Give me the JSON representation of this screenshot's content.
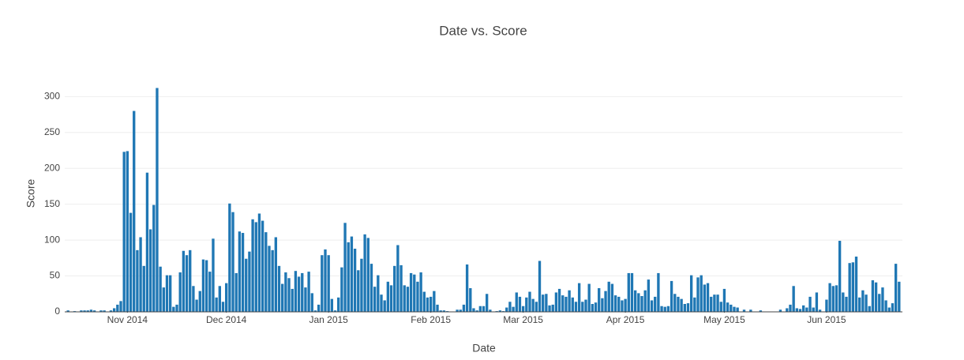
{
  "chart_data": {
    "type": "bar",
    "title": "Date vs. Score",
    "x_label": "Date",
    "y_label": "Score",
    "color": "#1f77b4",
    "grid": true,
    "x": [
      "2014-10-14",
      "2014-10-15",
      "2014-10-16",
      "2014-10-17",
      "2014-10-18",
      "2014-10-19",
      "2014-10-20",
      "2014-10-21",
      "2014-10-22",
      "2014-10-23",
      "2014-10-24",
      "2014-10-25",
      "2014-10-26",
      "2014-10-27",
      "2014-10-28",
      "2014-10-29",
      "2014-10-30",
      "2014-10-31",
      "2014-11-01",
      "2014-11-02",
      "2014-11-03",
      "2014-11-04",
      "2014-11-05",
      "2014-11-06",
      "2014-11-07",
      "2014-11-08",
      "2014-11-09",
      "2014-11-10",
      "2014-11-11",
      "2014-11-12",
      "2014-11-13",
      "2014-11-14",
      "2014-11-15",
      "2014-11-16",
      "2014-11-17",
      "2014-11-18",
      "2014-11-19",
      "2014-11-20",
      "2014-11-21",
      "2014-11-22",
      "2014-11-23",
      "2014-11-24",
      "2014-11-25",
      "2014-11-26",
      "2014-11-27",
      "2014-11-28",
      "2014-11-29",
      "2014-11-30",
      "2014-12-01",
      "2014-12-02",
      "2014-12-03",
      "2014-12-04",
      "2014-12-05",
      "2014-12-06",
      "2014-12-07",
      "2014-12-08",
      "2014-12-09",
      "2014-12-10",
      "2014-12-11",
      "2014-12-12",
      "2014-12-13",
      "2014-12-14",
      "2014-12-15",
      "2014-12-16",
      "2014-12-17",
      "2014-12-18",
      "2014-12-19",
      "2014-12-20",
      "2014-12-21",
      "2014-12-22",
      "2014-12-23",
      "2014-12-24",
      "2014-12-25",
      "2014-12-26",
      "2014-12-27",
      "2014-12-28",
      "2014-12-29",
      "2014-12-30",
      "2014-12-31",
      "2015-01-01",
      "2015-01-02",
      "2015-01-03",
      "2015-01-04",
      "2015-01-05",
      "2015-01-06",
      "2015-01-07",
      "2015-01-08",
      "2015-01-09",
      "2015-01-10",
      "2015-01-11",
      "2015-01-12",
      "2015-01-13",
      "2015-01-14",
      "2015-01-15",
      "2015-01-16",
      "2015-01-17",
      "2015-01-18",
      "2015-01-19",
      "2015-01-20",
      "2015-01-21",
      "2015-01-22",
      "2015-01-23",
      "2015-01-24",
      "2015-01-25",
      "2015-01-26",
      "2015-01-27",
      "2015-01-28",
      "2015-01-29",
      "2015-01-30",
      "2015-01-31",
      "2015-02-01",
      "2015-02-02",
      "2015-02-03",
      "2015-02-04",
      "2015-02-05",
      "2015-02-06",
      "2015-02-07",
      "2015-02-08",
      "2015-02-09",
      "2015-02-10",
      "2015-02-11",
      "2015-02-12",
      "2015-02-13",
      "2015-02-14",
      "2015-02-15",
      "2015-02-16",
      "2015-02-17",
      "2015-02-18",
      "2015-02-19",
      "2015-02-20",
      "2015-02-21",
      "2015-02-22",
      "2015-02-23",
      "2015-02-24",
      "2015-02-25",
      "2015-02-26",
      "2015-02-27",
      "2015-02-28",
      "2015-03-01",
      "2015-03-02",
      "2015-03-03",
      "2015-03-04",
      "2015-03-05",
      "2015-03-06",
      "2015-03-07",
      "2015-03-08",
      "2015-03-09",
      "2015-03-10",
      "2015-03-11",
      "2015-03-12",
      "2015-03-13",
      "2015-03-14",
      "2015-03-15",
      "2015-03-16",
      "2015-03-17",
      "2015-03-18",
      "2015-03-19",
      "2015-03-20",
      "2015-03-21",
      "2015-03-22",
      "2015-03-23",
      "2015-03-24",
      "2015-03-25",
      "2015-03-26",
      "2015-03-27",
      "2015-03-28",
      "2015-03-29",
      "2015-03-30",
      "2015-03-31",
      "2015-04-01",
      "2015-04-02",
      "2015-04-03",
      "2015-04-04",
      "2015-04-05",
      "2015-04-06",
      "2015-04-07",
      "2015-04-08",
      "2015-04-09",
      "2015-04-10",
      "2015-04-11",
      "2015-04-12",
      "2015-04-13",
      "2015-04-14",
      "2015-04-15",
      "2015-04-16",
      "2015-04-17",
      "2015-04-18",
      "2015-04-19",
      "2015-04-20",
      "2015-04-21",
      "2015-04-22",
      "2015-04-23",
      "2015-04-24",
      "2015-04-25",
      "2015-04-26",
      "2015-04-27",
      "2015-04-28",
      "2015-04-29",
      "2015-04-30",
      "2015-05-01",
      "2015-05-02",
      "2015-05-03",
      "2015-05-04",
      "2015-05-05",
      "2015-05-06",
      "2015-05-07",
      "2015-05-08",
      "2015-05-09",
      "2015-05-10",
      "2015-05-11",
      "2015-05-12",
      "2015-05-13",
      "2015-05-14",
      "2015-05-15",
      "2015-05-16",
      "2015-05-17",
      "2015-05-18",
      "2015-05-19",
      "2015-05-20",
      "2015-05-21",
      "2015-05-22",
      "2015-05-23",
      "2015-05-24",
      "2015-05-25",
      "2015-05-26",
      "2015-05-27",
      "2015-05-28",
      "2015-05-29",
      "2015-05-30",
      "2015-05-31",
      "2015-06-01",
      "2015-06-02",
      "2015-06-03",
      "2015-06-04",
      "2015-06-05",
      "2015-06-06",
      "2015-06-07",
      "2015-06-08",
      "2015-06-09",
      "2015-06-10",
      "2015-06-11",
      "2015-06-12",
      "2015-06-13",
      "2015-06-14",
      "2015-06-15",
      "2015-06-16",
      "2015-06-17",
      "2015-06-18",
      "2015-06-19",
      "2015-06-20",
      "2015-06-21",
      "2015-06-22",
      "2015-06-23"
    ],
    "values": [
      2,
      0,
      1,
      0,
      2,
      2,
      2,
      3,
      2,
      0,
      2,
      2,
      0,
      2,
      5,
      10,
      15,
      223,
      224,
      138,
      280,
      86,
      104,
      64,
      194,
      115,
      149,
      312,
      63,
      34,
      51,
      51,
      7,
      10,
      55,
      85,
      79,
      86,
      36,
      17,
      29,
      73,
      72,
      56,
      102,
      20,
      36,
      14,
      40,
      151,
      139,
      54,
      112,
      110,
      74,
      84,
      129,
      125,
      137,
      127,
      111,
      92,
      86,
      104,
      64,
      39,
      55,
      47,
      32,
      57,
      49,
      54,
      34,
      56,
      26,
      2,
      10,
      79,
      87,
      79,
      18,
      2,
      20,
      62,
      124,
      97,
      105,
      88,
      58,
      74,
      108,
      103,
      67,
      35,
      51,
      24,
      16,
      42,
      37,
      64,
      93,
      65,
      37,
      35,
      54,
      52,
      42,
      55,
      28,
      20,
      21,
      29,
      10,
      2,
      2,
      1,
      0,
      0,
      3,
      3,
      10,
      66,
      33,
      5,
      2,
      8,
      8,
      25,
      3,
      0,
      1,
      2,
      1,
      6,
      14,
      7,
      27,
      21,
      8,
      20,
      28,
      18,
      14,
      71,
      24,
      25,
      9,
      10,
      27,
      32,
      23,
      21,
      30,
      20,
      14,
      40,
      14,
      17,
      39,
      11,
      13,
      33,
      19,
      29,
      42,
      39,
      23,
      21,
      16,
      18,
      54,
      54,
      30,
      26,
      22,
      30,
      45,
      16,
      21,
      54,
      8,
      7,
      8,
      43,
      25,
      21,
      18,
      11,
      12,
      51,
      20,
      48,
      51,
      38,
      40,
      21,
      24,
      24,
      14,
      32,
      13,
      10,
      7,
      6,
      0,
      3,
      0,
      3,
      0,
      0,
      2,
      0,
      0,
      0,
      0,
      0,
      3,
      0,
      5,
      10,
      36,
      5,
      4,
      9,
      6,
      21,
      6,
      27,
      3,
      0,
      17,
      40,
      36,
      37,
      99,
      27,
      21,
      68,
      69,
      77,
      20,
      30,
      24,
      8,
      44,
      41,
      25,
      34,
      16,
      6,
      12,
      67,
      42
    ],
    "xlim": [
      "2014-10-13",
      "2015-06-24"
    ],
    "xticks": [
      {
        "value": "2014-11-01",
        "label": "Nov 2014"
      },
      {
        "value": "2014-12-01",
        "label": "Dec 2014"
      },
      {
        "value": "2015-01-01",
        "label": "Jan 2015"
      },
      {
        "value": "2015-02-01",
        "label": "Feb 2015"
      },
      {
        "value": "2015-03-01",
        "label": "Mar 2015"
      },
      {
        "value": "2015-04-01",
        "label": "Apr 2015"
      },
      {
        "value": "2015-05-01",
        "label": "May 2015"
      },
      {
        "value": "2015-06-01",
        "label": "Jun 2015"
      }
    ],
    "ylim": [
      0,
      329
    ],
    "yticks": [
      0,
      50,
      100,
      150,
      200,
      250,
      300
    ]
  }
}
